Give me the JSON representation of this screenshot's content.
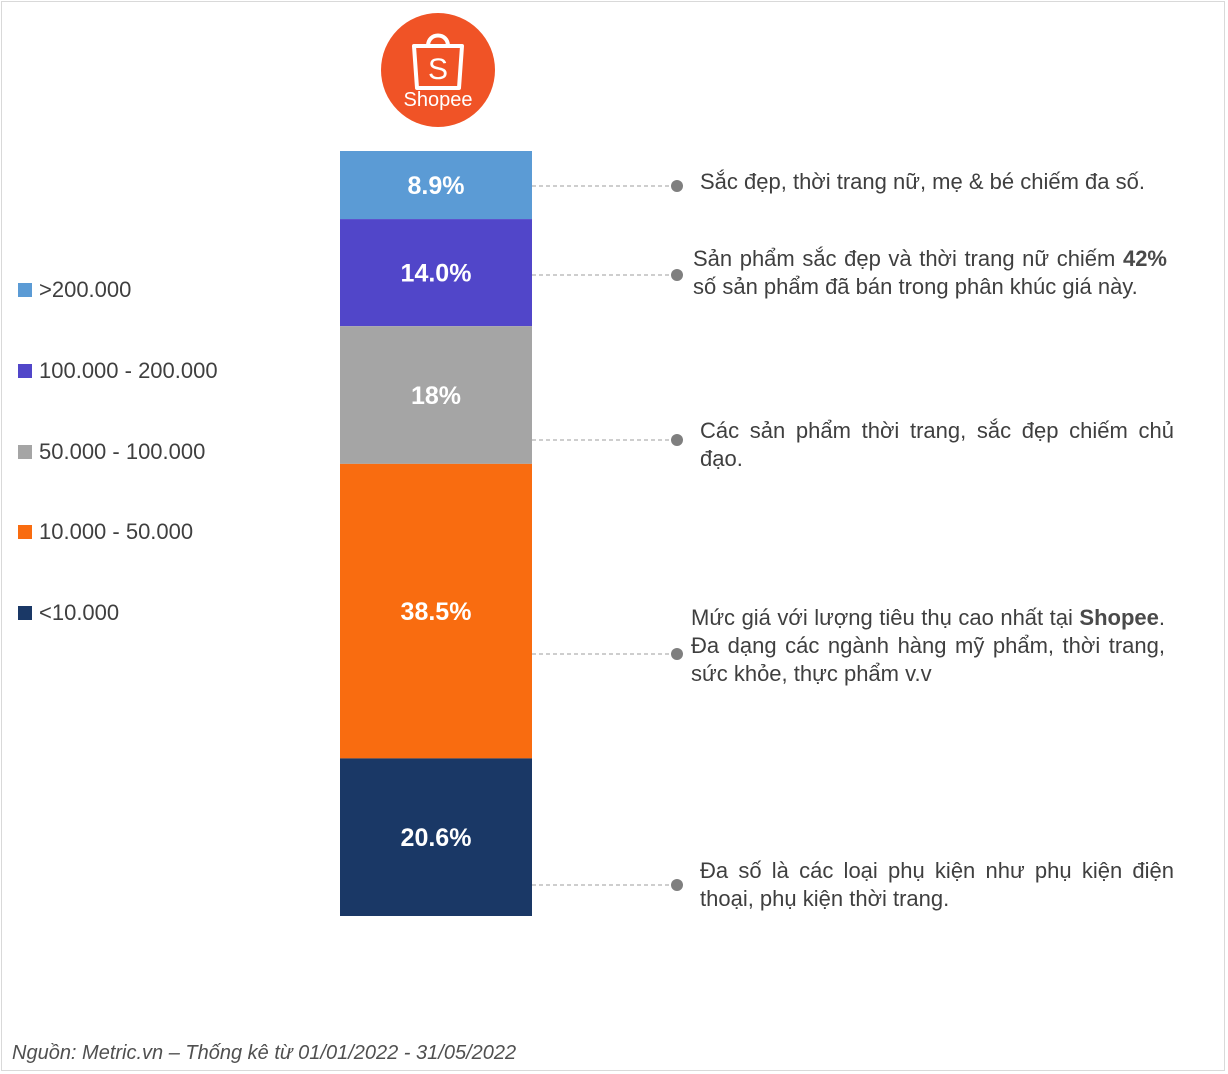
{
  "brand": {
    "name": "Shopee",
    "color": "#F05326"
  },
  "chart_data": {
    "type": "bar",
    "stacked": true,
    "orientation": "vertical",
    "series": [
      {
        "name": ">200.000",
        "value": 8.9,
        "label": "8.9%",
        "color": "#5B9BD5"
      },
      {
        "name": "100.000 - 200.000",
        "value": 14.0,
        "label": "14.0%",
        "color": "#5146C9"
      },
      {
        "name": "50.000 - 100.000",
        "value": 18,
        "label": "18%",
        "color": "#A5A5A5"
      },
      {
        "name": "10.000 - 50.000",
        "value": 38.5,
        "label": "38.5%",
        "color": "#F96C10"
      },
      {
        "name": "<10.000",
        "value": 20.6,
        "label": "20.6%",
        "color": "#1A3866"
      }
    ],
    "legend_position": "left",
    "annotations": [
      {
        "segment": ">200.000",
        "parts": [
          {
            "text": "Sắc đẹp, thời trang nữ, mẹ & bé chiếm đa số."
          }
        ]
      },
      {
        "segment": "100.000 - 200.000",
        "parts": [
          {
            "text": "Sản phẩm sắc đẹp và thời trang nữ chiếm "
          },
          {
            "text": "42%",
            "bold": true
          },
          {
            "text": " số sản phẩm đã bán trong phân khúc giá này."
          }
        ]
      },
      {
        "segment": "50.000 - 100.000",
        "parts": [
          {
            "text": "Các sản phẩm thời trang, sắc đẹp chiếm chủ đạo."
          }
        ]
      },
      {
        "segment": "10.000 - 50.000",
        "parts": [
          {
            "text": "Mức giá với lượng tiêu thụ cao nhất tại "
          },
          {
            "text": "Shopee",
            "bold": true
          },
          {
            "text": ". Đa dạng các ngành hàng mỹ phẩm, thời trang, sức khỏe, thực phẩm v.v"
          }
        ]
      },
      {
        "segment": "<10.000",
        "parts": [
          {
            "text": "Đa số là các loại phụ kiện như phụ kiện điện thoại, phụ kiện thời trang."
          }
        ]
      }
    ]
  },
  "source": "Nguồn: Metric.vn – Thống kê từ 01/01/2022 - 31/05/2022"
}
